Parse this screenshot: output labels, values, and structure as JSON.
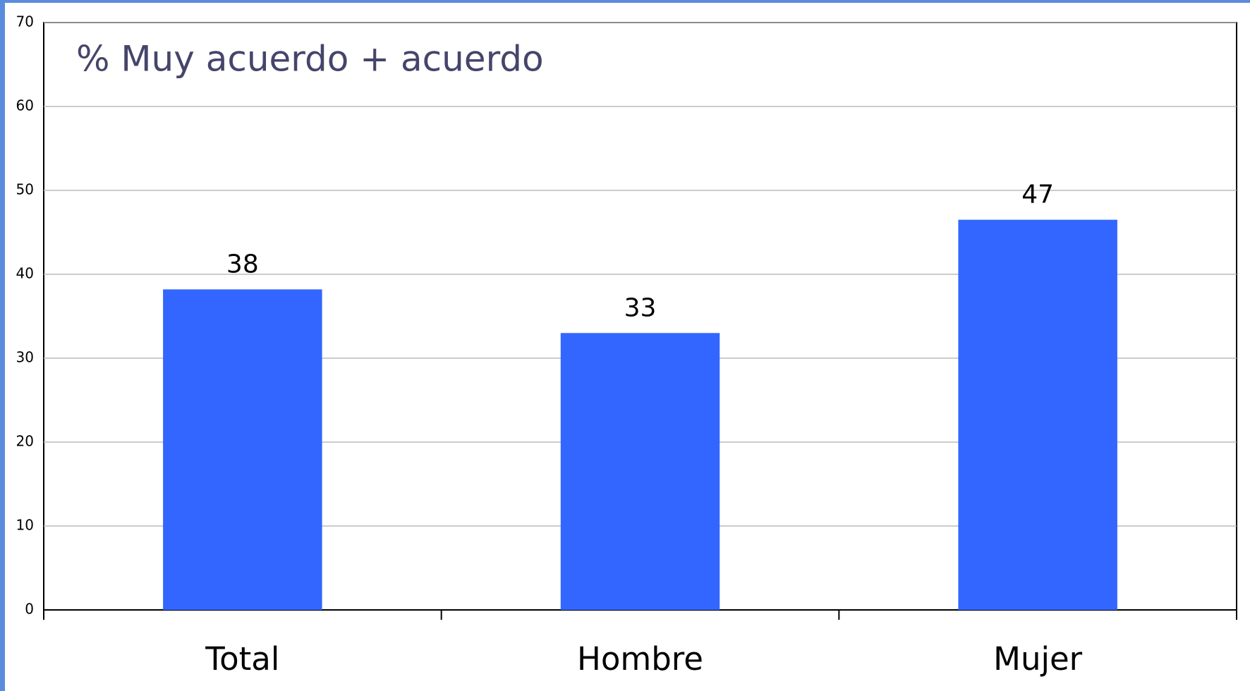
{
  "chart_data": {
    "type": "bar",
    "title": "% Muy acuerdo + acuerdo",
    "categories": [
      "Total",
      "Hombre",
      "Mujer"
    ],
    "values": [
      38.2,
      33,
      46.5
    ],
    "value_labels": [
      "38",
      "33",
      "47"
    ],
    "color": "#3366ff",
    "ylim": [
      0,
      70
    ],
    "yticks": [
      0,
      10,
      20,
      30,
      40,
      50,
      60,
      70
    ],
    "grid": true
  }
}
